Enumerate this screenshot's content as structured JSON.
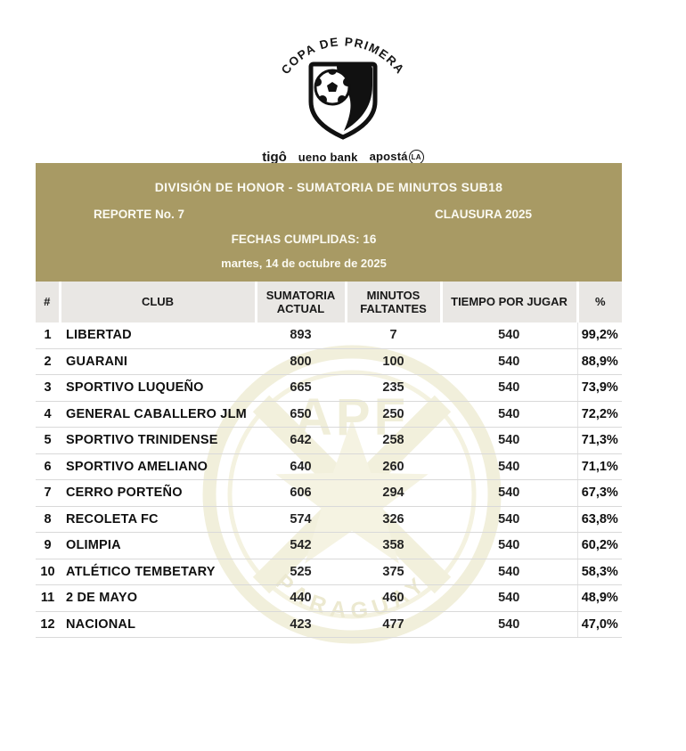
{
  "logo": {
    "arc_text": "COPA DE PRIMERA",
    "sponsors": {
      "tigo": "tigô",
      "ueno": "ueno bank",
      "aposta": "apostá",
      "aposta_badge": "LA"
    }
  },
  "header": {
    "title": "DIVISIÓN DE HONOR - SUMATORIA DE MINUTOS SUB18",
    "report": "REPORTE No. 7",
    "season": "CLAUSURA 2025",
    "fechas": "FECHAS CUMPLIDAS: 16",
    "date": "martes, 14 de octubre de 2025"
  },
  "watermark": {
    "top_text": "APF",
    "bottom_text": "PARAGUAY"
  },
  "colors": {
    "gold": "#a89a64",
    "header_row_bg": "#e9e7e4",
    "row_divider": "#d9d9d9",
    "watermark_tint": "#f0eed8"
  },
  "table": {
    "columns": [
      "#",
      "CLUB",
      "SUMATORIA ACTUAL",
      "MINUTOS FALTANTES",
      "TIEMPO POR JUGAR",
      "%"
    ],
    "rows": [
      {
        "pos": "1",
        "club": "LIBERTAD",
        "sumatoria": "893",
        "faltantes": "7",
        "tiempo": "540",
        "pct": "99,2%"
      },
      {
        "pos": "2",
        "club": "GUARANI",
        "sumatoria": "800",
        "faltantes": "100",
        "tiempo": "540",
        "pct": "88,9%"
      },
      {
        "pos": "3",
        "club": "SPORTIVO LUQUEÑO",
        "sumatoria": "665",
        "faltantes": "235",
        "tiempo": "540",
        "pct": "73,9%"
      },
      {
        "pos": "4",
        "club": "GENERAL CABALLERO JLM",
        "sumatoria": "650",
        "faltantes": "250",
        "tiempo": "540",
        "pct": "72,2%"
      },
      {
        "pos": "5",
        "club": "SPORTIVO TRINIDENSE",
        "sumatoria": "642",
        "faltantes": "258",
        "tiempo": "540",
        "pct": "71,3%"
      },
      {
        "pos": "6",
        "club": "SPORTIVO AMELIANO",
        "sumatoria": "640",
        "faltantes": "260",
        "tiempo": "540",
        "pct": "71,1%"
      },
      {
        "pos": "7",
        "club": "CERRO PORTEÑO",
        "sumatoria": "606",
        "faltantes": "294",
        "tiempo": "540",
        "pct": "67,3%"
      },
      {
        "pos": "8",
        "club": "RECOLETA FC",
        "sumatoria": "574",
        "faltantes": "326",
        "tiempo": "540",
        "pct": "63,8%"
      },
      {
        "pos": "9",
        "club": "OLIMPIA",
        "sumatoria": "542",
        "faltantes": "358",
        "tiempo": "540",
        "pct": "60,2%"
      },
      {
        "pos": "10",
        "club": "ATLÉTICO TEMBETARY",
        "sumatoria": "525",
        "faltantes": "375",
        "tiempo": "540",
        "pct": "58,3%"
      },
      {
        "pos": "11",
        "club": "2 DE MAYO",
        "sumatoria": "440",
        "faltantes": "460",
        "tiempo": "540",
        "pct": "48,9%"
      },
      {
        "pos": "12",
        "club": "NACIONAL",
        "sumatoria": "423",
        "faltantes": "477",
        "tiempo": "540",
        "pct": "47,0%"
      }
    ]
  }
}
